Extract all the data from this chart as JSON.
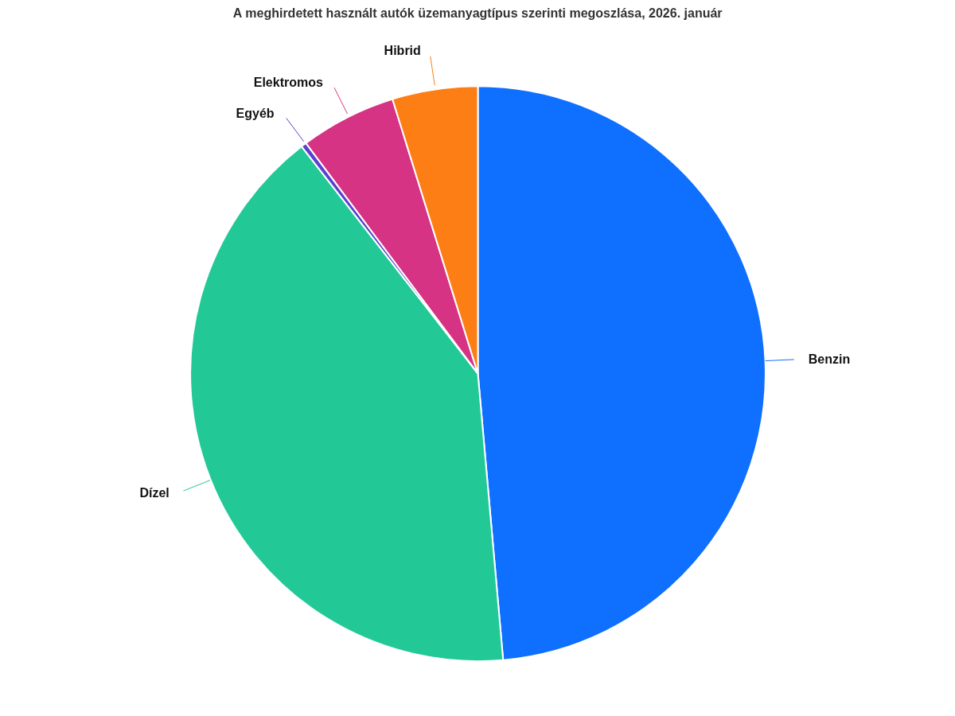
{
  "chart_data": {
    "type": "pie",
    "title": "A meghirdetett használt autók üzemanyagtípus szerinti megoszlása, 2026. január",
    "categories": [
      "Benzin",
      "Dízel",
      "Egyéb",
      "Elektromos",
      "Hibrid"
    ],
    "values": [
      48.6,
      40.9,
      0.3,
      5.4,
      4.8
    ],
    "colors": [
      "#0f6fff",
      "#22c997",
      "#5b3fd0",
      "#d63384",
      "#fd7e14"
    ]
  }
}
